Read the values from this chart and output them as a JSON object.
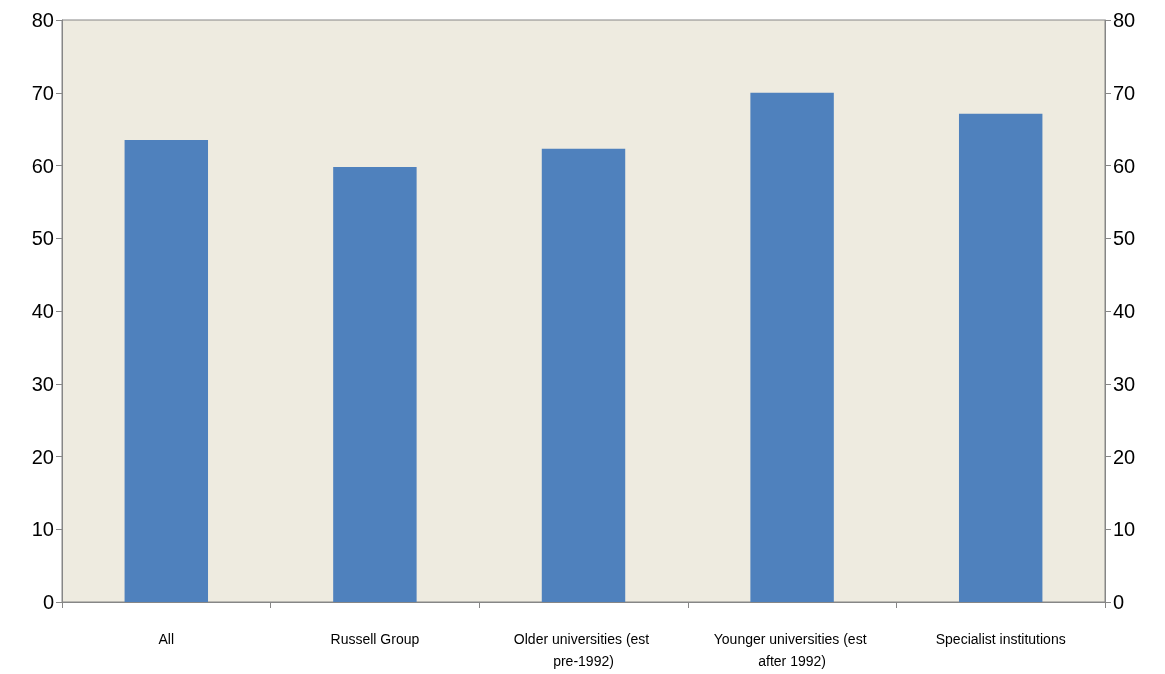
{
  "chart_data": {
    "type": "bar",
    "categories": [
      "All",
      "Russell Group",
      "Older universities (est pre-1992)",
      "Younger universities (est after 1992)",
      "Specialist institutions"
    ],
    "series": [
      {
        "color": "#4f81bd",
        "values": [
          63.5,
          59.8,
          62.3,
          70.0,
          67.1
        ]
      }
    ],
    "ylim": [
      0,
      80
    ],
    "yticks": [
      0,
      10,
      20,
      30,
      40,
      50,
      60,
      70,
      80
    ],
    "y2lim": [
      0,
      80
    ],
    "y2ticks": [
      0,
      10,
      20,
      30,
      40,
      50,
      60,
      70,
      80
    ]
  }
}
